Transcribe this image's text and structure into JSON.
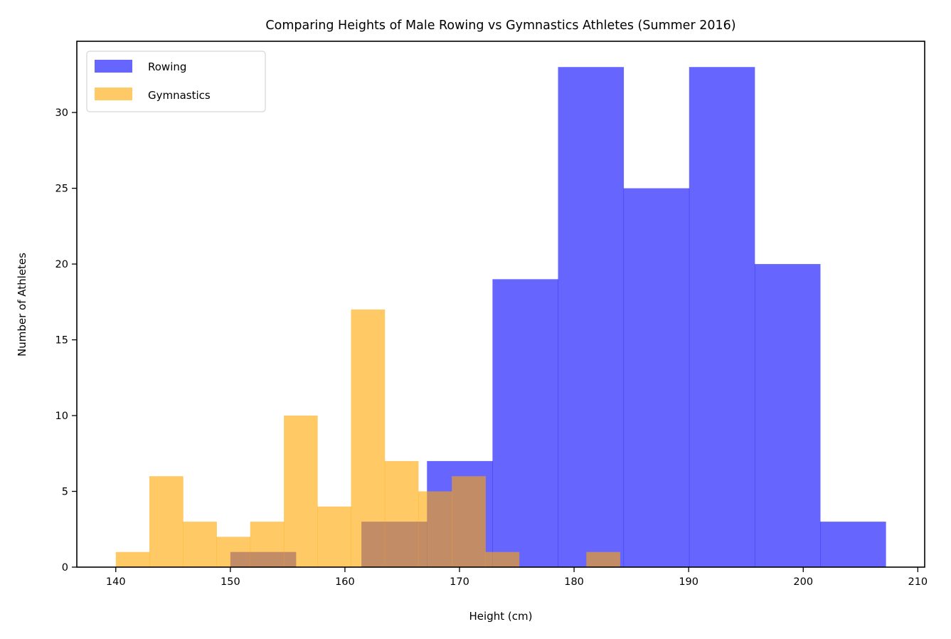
{
  "chart_data": {
    "type": "bar",
    "subtype": "histogram",
    "title": "Comparing Heights of Male Rowing vs Gymnastics Athletes (Summer 2016)",
    "xlabel": "Height (cm)",
    "ylabel": "Number of Athletes",
    "xlim": [
      136.6,
      210.6
    ],
    "ylim": [
      0,
      34.7
    ],
    "xticks": [
      140,
      150,
      160,
      170,
      180,
      190,
      200,
      210
    ],
    "yticks": [
      0,
      5,
      10,
      15,
      20,
      25,
      30
    ],
    "grid": false,
    "legend_position": "top-left",
    "series": [
      {
        "name": "Rowing",
        "color": "#0000ff",
        "alpha": 0.6,
        "bin_edges": [
          150.0,
          155.72,
          161.44,
          167.16,
          172.88,
          178.6,
          184.32,
          190.04,
          195.76,
          201.48,
          207.2
        ],
        "values": [
          1,
          0,
          3,
          7,
          19,
          33,
          25,
          33,
          20,
          3
        ]
      },
      {
        "name": "Gymnastics",
        "color": "#ffa500",
        "alpha": 0.6,
        "bin_edges": [
          140.0,
          142.93,
          145.87,
          148.8,
          151.73,
          154.67,
          157.6,
          160.53,
          163.47,
          166.4,
          169.33,
          172.27,
          175.2,
          178.13,
          181.07,
          184.0
        ],
        "values": [
          1,
          6,
          3,
          2,
          3,
          10,
          4,
          17,
          7,
          5,
          6,
          1,
          0,
          0,
          1
        ]
      }
    ]
  }
}
